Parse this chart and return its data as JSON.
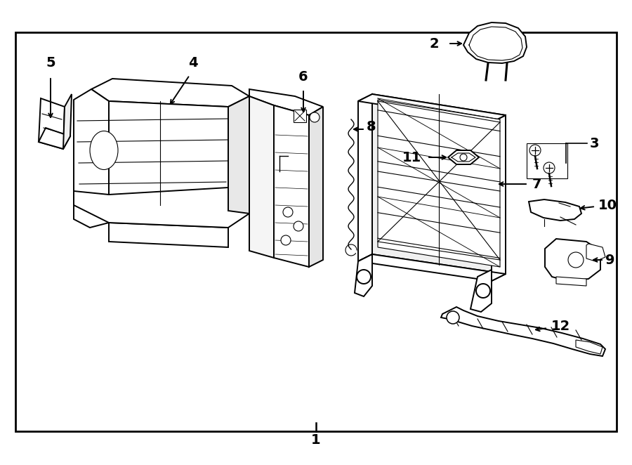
{
  "background_color": "#ffffff",
  "line_color": "#000000",
  "fig_width": 9.0,
  "fig_height": 6.62,
  "dpi": 100,
  "lw": 1.4,
  "lt": 0.8,
  "fs": 14
}
